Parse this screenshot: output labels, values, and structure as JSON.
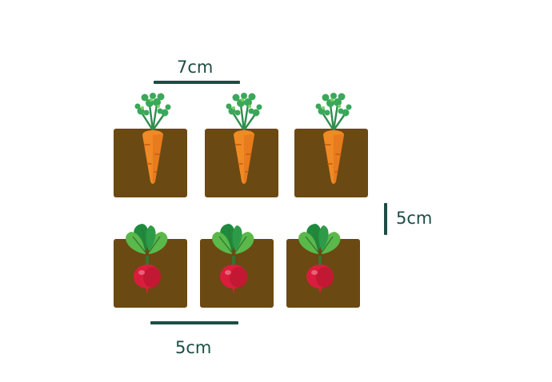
{
  "measurements": {
    "carrot_spacing": "7cm",
    "row_spacing": "5cm",
    "radish_spacing": "5cm"
  },
  "rows": [
    {
      "plant": "carrot-icon",
      "count": 3
    },
    {
      "plant": "radish-icon",
      "count": 3
    }
  ],
  "colors": {
    "soil": "#6b4913",
    "measure_line": "#1d4d45",
    "carrot": "#f08a24",
    "carrot_leaf": "#3aa85a",
    "radish": "#d81e3c",
    "radish_leaf": "#5bb84a"
  }
}
